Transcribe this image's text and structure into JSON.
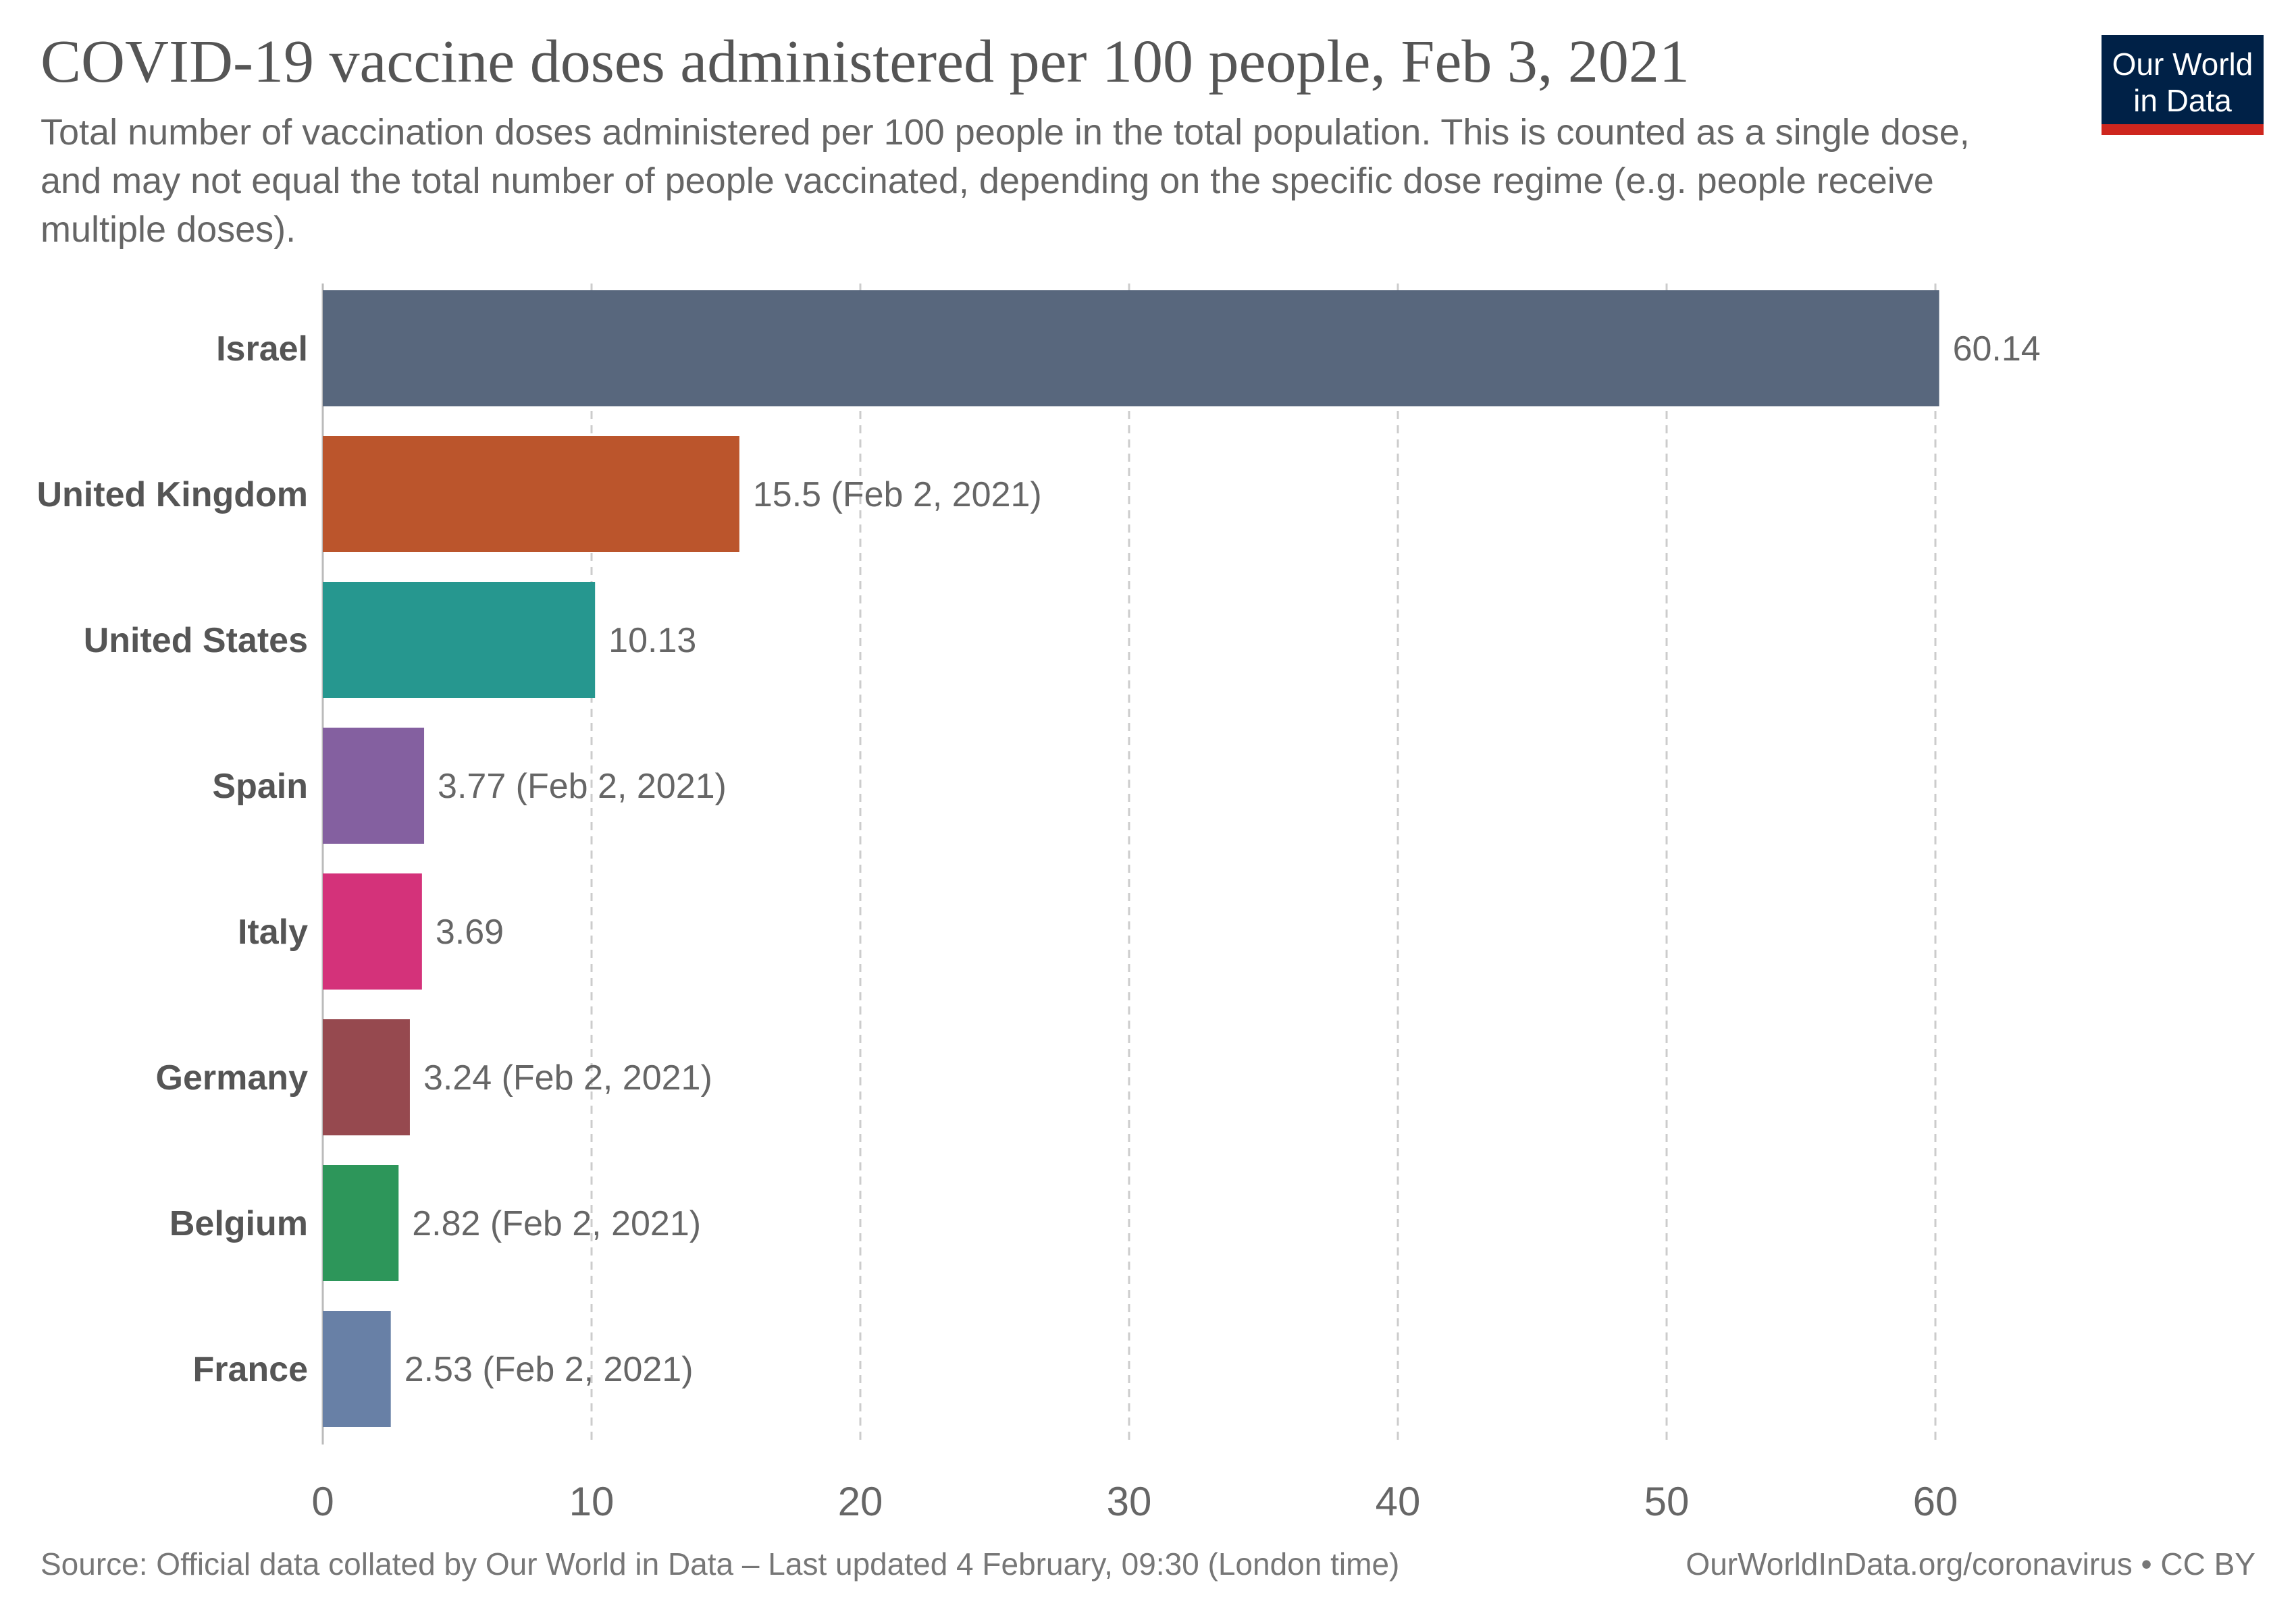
{
  "header": {
    "title": "COVID-19 vaccine doses administered per 100 people, Feb 3, 2021",
    "subtitle": "Total number of vaccination doses administered per 100 people in the total population. This is counted as a single dose, and may not equal the total number of people vaccinated, depending on the specific dose regime (e.g. people receive multiple doses).",
    "logo_line1": "Our World",
    "logo_line2": "in Data"
  },
  "footer": {
    "source": "Source: Official data collated by Our World in Data – Last updated 4 February, 09:30 (London time)",
    "credit": "OurWorldInData.org/coronavirus • CC BY"
  },
  "colors": {
    "logo_bg": "#002147",
    "logo_accent": "#ce261e",
    "grid": "#cccccc",
    "label_text": "#555555"
  },
  "chart_data": {
    "type": "bar",
    "orientation": "horizontal",
    "title": "COVID-19 vaccine doses administered per 100 people, Feb 3, 2021",
    "xlim": [
      0,
      60
    ],
    "xticks": [
      0,
      10,
      20,
      30,
      40,
      50,
      60
    ],
    "grid": "vertical dashed",
    "categories": [
      "Israel",
      "United Kingdom",
      "United States",
      "Spain",
      "Italy",
      "Germany",
      "Belgium",
      "France"
    ],
    "values": [
      60.14,
      15.5,
      10.13,
      3.77,
      3.69,
      3.24,
      2.82,
      2.53
    ],
    "value_labels": [
      "60.14",
      "15.5 (Feb 2, 2021)",
      "10.13",
      "3.77 (Feb 2, 2021)",
      "3.69",
      "3.24 (Feb 2, 2021)",
      "2.82 (Feb 2, 2021)",
      "2.53 (Feb 2, 2021)"
    ],
    "bar_colors": [
      "#58677d",
      "#bb552c",
      "#26978f",
      "#8460a0",
      "#d4327a",
      "#96494f",
      "#2d965a",
      "#6880a6"
    ]
  }
}
